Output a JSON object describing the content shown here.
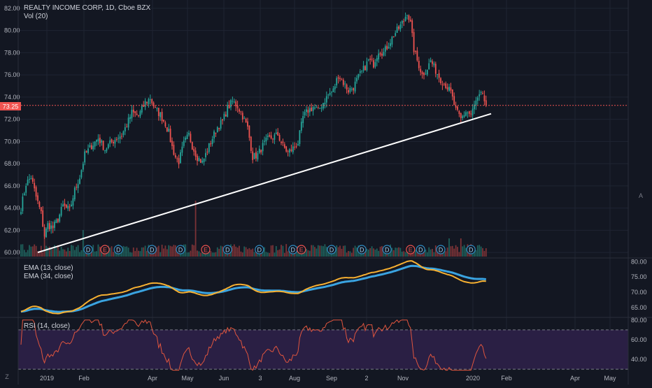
{
  "header": {
    "symbol_title": "REALTY INCOME CORP, 1D, Cboe BZX",
    "volume_label": "Vol (20)"
  },
  "price_badge": "73.25",
  "right_axis_letter": "A",
  "left_axis_letter": "Z",
  "chart_data": [
    {
      "type": "candlestick",
      "panel": "price",
      "title": "REALTY INCOME CORP, 1D, Cboe BZX",
      "ylim": [
        59.5,
        82.5
      ],
      "y_ticks": [
        "60.00",
        "62.00",
        "64.00",
        "66.00",
        "68.00",
        "70.00",
        "72.00",
        "74.00",
        "76.00",
        "78.00",
        "80.00",
        "82.00"
      ],
      "x_ticks": [
        "2019",
        "Feb",
        "Apr",
        "May",
        "Jun",
        "3",
        "Aug",
        "Sep",
        "2",
        "Nov",
        "2020",
        "Feb",
        "Apr",
        "May"
      ],
      "last_price": 73.25,
      "anchors": [
        [
          0,
          64.0
        ],
        [
          3,
          66.2
        ],
        [
          6,
          66.8
        ],
        [
          9,
          65.0
        ],
        [
          12,
          63.5
        ],
        [
          14,
          61.5
        ],
        [
          16,
          62.5
        ],
        [
          19,
          62.2
        ],
        [
          22,
          63.0
        ],
        [
          25,
          64.2
        ],
        [
          29,
          63.8
        ],
        [
          32,
          65.6
        ],
        [
          35,
          66.8
        ],
        [
          38,
          68.8
        ],
        [
          42,
          69.6
        ],
        [
          46,
          70.3
        ],
        [
          50,
          69.3
        ],
        [
          53,
          69.8
        ],
        [
          56,
          70.2
        ],
        [
          60,
          70.6
        ],
        [
          63,
          71.5
        ],
        [
          66,
          72.6
        ],
        [
          70,
          72.3
        ],
        [
          74,
          73.5
        ],
        [
          77,
          73.9
        ],
        [
          80,
          72.9
        ],
        [
          83,
          72.4
        ],
        [
          86,
          71.6
        ],
        [
          88,
          70.8
        ],
        [
          90,
          69.5
        ],
        [
          92,
          68.6
        ],
        [
          94,
          68.2
        ],
        [
          97,
          69.8
        ],
        [
          100,
          70.6
        ],
        [
          102,
          69.6
        ],
        [
          105,
          68.6
        ],
        [
          108,
          68.1
        ],
        [
          111,
          69.2
        ],
        [
          114,
          70.3
        ],
        [
          117,
          71.3
        ],
        [
          120,
          71.8
        ],
        [
          123,
          73.0
        ],
        [
          126,
          73.6
        ],
        [
          129,
          73.2
        ],
        [
          132,
          72.3
        ],
        [
          135,
          71.2
        ],
        [
          138,
          68.6
        ],
        [
          141,
          68.8
        ],
        [
          144,
          69.6
        ],
        [
          147,
          70.2
        ],
        [
          150,
          70.4
        ],
        [
          153,
          70.6
        ],
        [
          156,
          69.6
        ],
        [
          159,
          69.0
        ],
        [
          162,
          69.4
        ],
        [
          165,
          69.9
        ],
        [
          168,
          72.2
        ],
        [
          171,
          72.8
        ],
        [
          174,
          73.1
        ],
        [
          177,
          72.8
        ],
        [
          180,
          73.5
        ],
        [
          183,
          74.2
        ],
        [
          186,
          74.6
        ],
        [
          189,
          76.0
        ],
        [
          192,
          75.3
        ],
        [
          195,
          74.6
        ],
        [
          198,
          74.9
        ],
        [
          201,
          75.8
        ],
        [
          204,
          76.5
        ],
        [
          207,
          77.3
        ],
        [
          210,
          77.0
        ],
        [
          213,
          78.2
        ],
        [
          216,
          78.0
        ],
        [
          219,
          78.8
        ],
        [
          222,
          79.6
        ],
        [
          225,
          80.2
        ],
        [
          228,
          80.9
        ],
        [
          230,
          81.7
        ],
        [
          232,
          80.6
        ],
        [
          234,
          78.3
        ],
        [
          236,
          77.3
        ],
        [
          239,
          76.0
        ],
        [
          242,
          76.6
        ],
        [
          244,
          77.3
        ],
        [
          247,
          76.4
        ],
        [
          250,
          75.6
        ],
        [
          253,
          75.1
        ],
        [
          256,
          74.4
        ],
        [
          259,
          72.8
        ],
        [
          262,
          72.0
        ],
        [
          265,
          72.7
        ],
        [
          268,
          72.4
        ],
        [
          271,
          73.6
        ],
        [
          274,
          74.2
        ],
        [
          277,
          73.4
        ]
      ],
      "trendline": {
        "start": [
          10,
          60.0
        ],
        "end": [
          280,
          72.5
        ]
      },
      "events": [
        {
          "label": "D",
          "x": 40
        },
        {
          "label": "E",
          "x": 50
        },
        {
          "label": "D",
          "x": 58
        },
        {
          "label": "D",
          "x": 78
        },
        {
          "label": "D",
          "x": 95
        },
        {
          "label": "E",
          "x": 110
        },
        {
          "label": "D",
          "x": 123
        },
        {
          "label": "D",
          "x": 142
        },
        {
          "label": "D",
          "x": 162
        },
        {
          "label": "E",
          "x": 167
        },
        {
          "label": "D",
          "x": 185
        },
        {
          "label": "D",
          "x": 203
        },
        {
          "label": "D",
          "x": 218
        },
        {
          "label": "E",
          "x": 232
        },
        {
          "label": "D",
          "x": 238
        },
        {
          "label": "D",
          "x": 250
        },
        {
          "label": "D",
          "x": 268
        }
      ]
    },
    {
      "type": "line",
      "panel": "ema",
      "series": [
        {
          "name": "EMA (13, close)",
          "color": "#f7b031"
        },
        {
          "name": "EMA (34, close)",
          "color": "#3aa3e0"
        }
      ],
      "ylim": [
        62,
        81
      ],
      "y_ticks": [
        "65.00",
        "70.00",
        "75.00",
        "80.00"
      ]
    },
    {
      "type": "line",
      "panel": "rsi",
      "series": [
        {
          "name": "RSI (14, close)",
          "color": "#e0553e"
        }
      ],
      "ylim": [
        28,
        82
      ],
      "y_ticks": [
        "40.00",
        "60.00",
        "80.00"
      ],
      "bands": [
        30,
        70
      ]
    }
  ],
  "colors": {
    "background": "#131722",
    "grid": "#1f2432",
    "axis_text": "#b2b5be",
    "up": "#26a69a",
    "down": "#ef5350",
    "trendline": "#ffffff",
    "rsi_band_fill": "#2a1f44",
    "badge": "#ef5350"
  }
}
